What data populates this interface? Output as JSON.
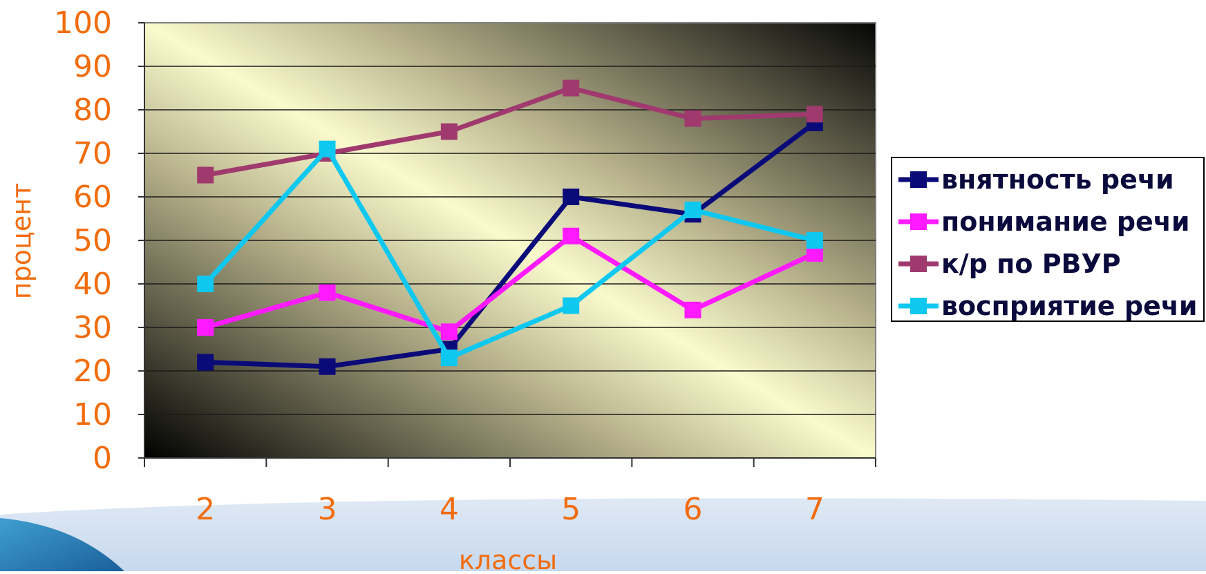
{
  "chart_data": {
    "type": "line",
    "title": "",
    "xlabel": "классы",
    "ylabel": "процент",
    "categories": [
      "2",
      "3",
      "4",
      "5",
      "6",
      "7"
    ],
    "ylim": [
      0,
      100
    ],
    "y_ticks": [
      "0",
      "10",
      "20",
      "30",
      "40",
      "50",
      "60",
      "70",
      "80",
      "90",
      "100"
    ],
    "grid": true,
    "legend_position": "right",
    "series": [
      {
        "name": "внятность речи",
        "color": "#0a0a78",
        "values": [
          22,
          21,
          25,
          60,
          56,
          77
        ]
      },
      {
        "name": "понимание речи",
        "color": "#ff1aff",
        "values": [
          30,
          38,
          29,
          51,
          34,
          47
        ]
      },
      {
        "name": "к/р по РВУР",
        "color": "#a03a6e",
        "values": [
          65,
          70,
          75,
          85,
          78,
          79
        ]
      },
      {
        "name": "восприятие речи",
        "color": "#0ec8f0",
        "values": [
          40,
          71,
          23,
          35,
          57,
          50
        ]
      }
    ]
  }
}
